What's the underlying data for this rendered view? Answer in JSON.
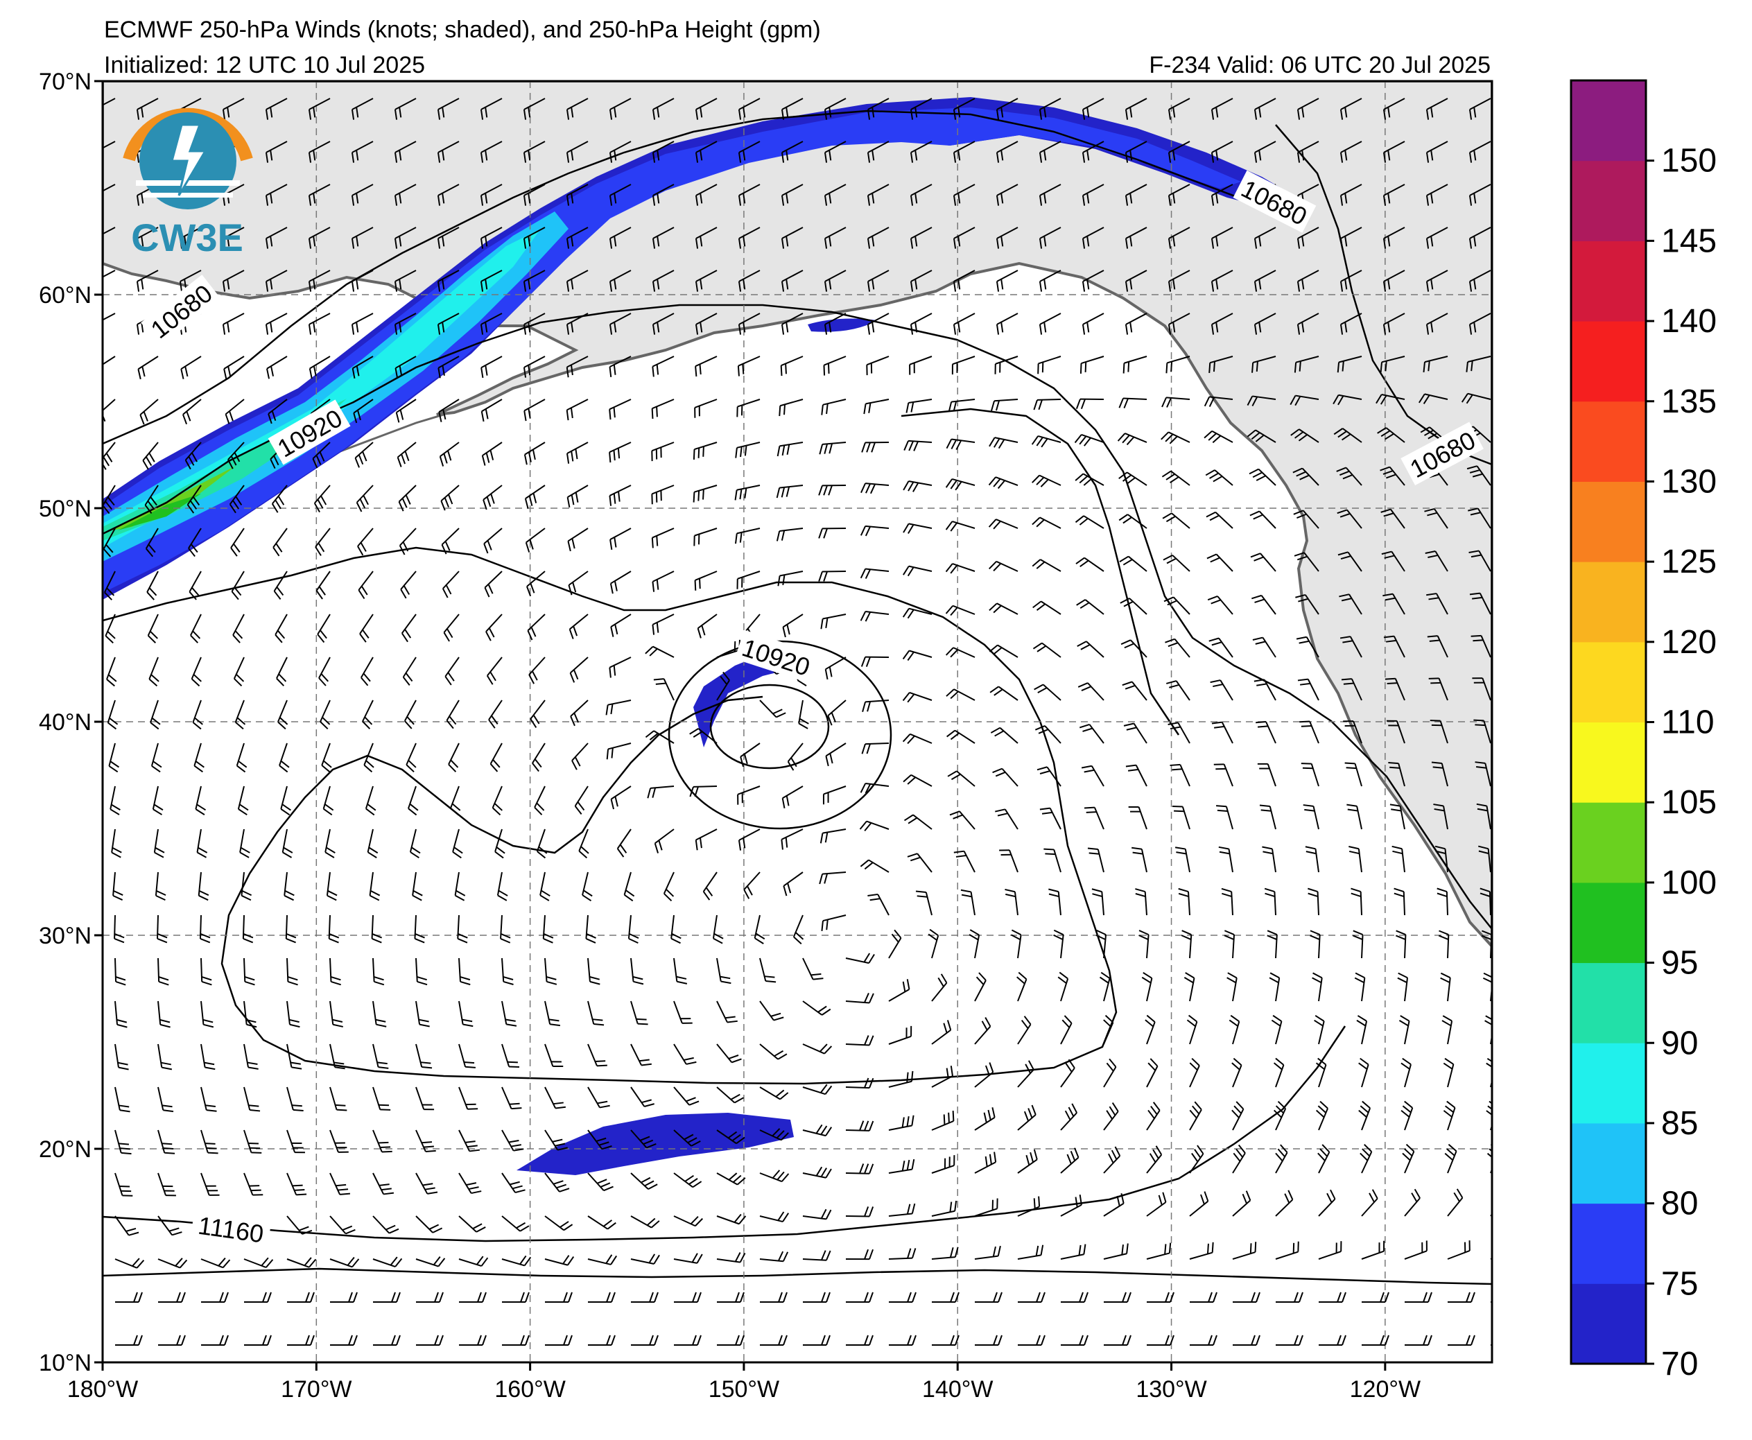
{
  "title": {
    "line1": "ECMWF 250-hPa Winds (knots; shaded), and 250-hPa Height (gpm)",
    "line2": "Initialized: 12 UTC 10 Jul 2025",
    "valid": "F-234  Valid: 06 UTC 20 Jul 2025"
  },
  "logo": {
    "text": "CW3E",
    "icon": "lightning-bolt-icon",
    "colors": [
      "#f2901e",
      "#2b8fb3"
    ]
  },
  "map": {
    "lon_range": [
      -180,
      -115
    ],
    "lat_range": [
      10,
      70
    ],
    "lat_ticks": [
      {
        "v": 70,
        "label": "70°N"
      },
      {
        "v": 60,
        "label": "60°N"
      },
      {
        "v": 50,
        "label": "50°N"
      },
      {
        "v": 40,
        "label": "40°N"
      },
      {
        "v": 30,
        "label": "30°N"
      },
      {
        "v": 20,
        "label": "20°N"
      },
      {
        "v": 10,
        "label": "10°N"
      }
    ],
    "lon_ticks": [
      {
        "v": -180,
        "label": "180°W"
      },
      {
        "v": -170,
        "label": "170°W"
      },
      {
        "v": -160,
        "label": "160°W"
      },
      {
        "v": -150,
        "label": "150°W"
      },
      {
        "v": -140,
        "label": "140°W"
      },
      {
        "v": -130,
        "label": "130°W"
      },
      {
        "v": -120,
        "label": "120°W"
      }
    ],
    "grid": "dashed"
  },
  "contour_labels": [
    {
      "text": "10680",
      "lon": -176.3,
      "lat": 59.2,
      "rot": -38
    },
    {
      "text": "10920",
      "lon": -170.3,
      "lat": 53.5,
      "rot": -30
    },
    {
      "text": "10680",
      "lon": -125.2,
      "lat": 64.3,
      "rot": 27
    },
    {
      "text": "10680",
      "lon": -117.3,
      "lat": 52.5,
      "rot": -28
    },
    {
      "text": "10920",
      "lon": -148.5,
      "lat": 43.0,
      "rot": 18
    },
    {
      "text": "11160",
      "lon": -174.0,
      "lat": 16.2,
      "rot": 8
    }
  ],
  "colorbar": {
    "levels": [
      70,
      75,
      80,
      85,
      90,
      95,
      100,
      105,
      110,
      120,
      125,
      130,
      135,
      140,
      145,
      150,
      155
    ],
    "labels": [
      "70",
      "75",
      "80",
      "85",
      "90",
      "95",
      "100",
      "105",
      "110",
      "120",
      "125",
      "130",
      "135",
      "140",
      "145",
      "150"
    ],
    "colors": [
      "#2323c9",
      "#2a3df5",
      "#1fc3f8",
      "#20f0ec",
      "#22e0a8",
      "#20c020",
      "#6ad11f",
      "#f8f81e",
      "#fdd81f",
      "#f9b31f",
      "#f8801f",
      "#fa4b1f",
      "#f51f1f",
      "#d31a3c",
      "#ae1a5d",
      "#8c1c7f"
    ]
  }
}
